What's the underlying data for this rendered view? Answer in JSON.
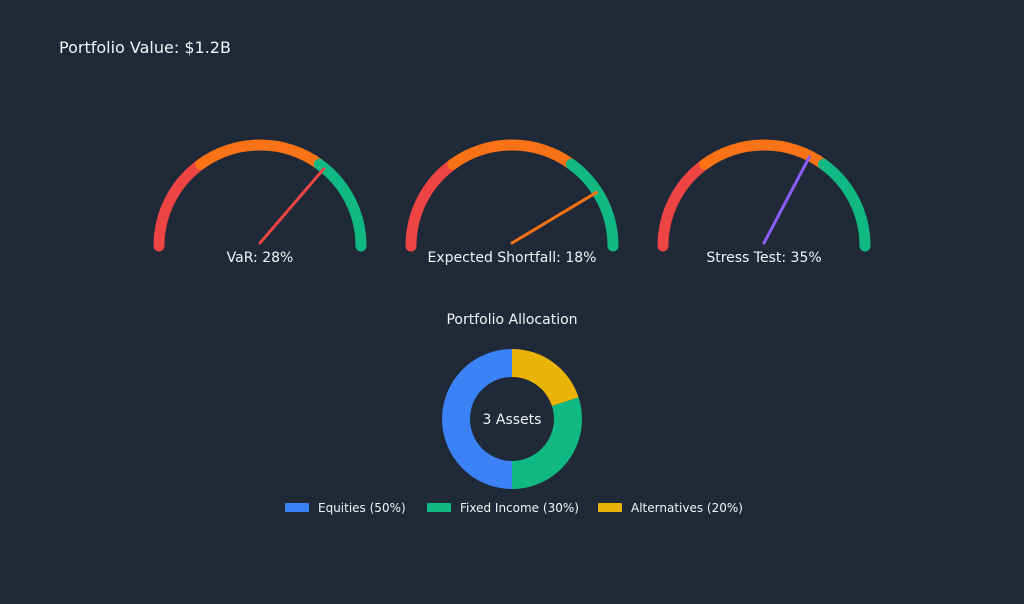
{
  "header": {
    "label": "Portfolio Value: ",
    "value": "$1.2B"
  },
  "colors": {
    "background": "#1f2937",
    "text": "#f3f4f6",
    "band_high": "#ef4444",
    "band_medium": "#f97316",
    "band_low": "#10b981"
  },
  "chart_data": [
    {
      "type": "gauge",
      "gauges": [
        {
          "label": "VaR: 28%",
          "value": 28,
          "needle_color": "#ef4444"
        },
        {
          "label": "Expected Shortfall: 18%",
          "value": 18,
          "needle_color": "#f97316"
        },
        {
          "label": "Stress Test: 35%",
          "value": 35,
          "needle_color": "#8b5cf6"
        }
      ],
      "bands": [
        {
          "color": "#ef4444",
          "share": 0.3
        },
        {
          "color": "#f97316",
          "share": 0.4
        },
        {
          "color": "#10b981",
          "share": 0.3
        }
      ],
      "range": [
        0,
        100
      ],
      "direction": "high-risk-left"
    },
    {
      "type": "pie",
      "variant": "donut",
      "title": "Portfolio Allocation",
      "center_label": "3 Assets",
      "slices": [
        {
          "name": "Alternatives",
          "value": 20,
          "color": "#eab308"
        },
        {
          "name": "Fixed Income",
          "value": 30,
          "color": "#10b981"
        },
        {
          "name": "Equities",
          "value": 50,
          "color": "#3b82f6"
        }
      ],
      "legend": {
        "position": "bottom",
        "items": [
          {
            "label": "Equities (50%)",
            "color": "#3b82f6"
          },
          {
            "label": "Fixed Income (30%)",
            "color": "#10b981"
          },
          {
            "label": "Alternatives (20%)",
            "color": "#eab308"
          }
        ]
      }
    }
  ]
}
